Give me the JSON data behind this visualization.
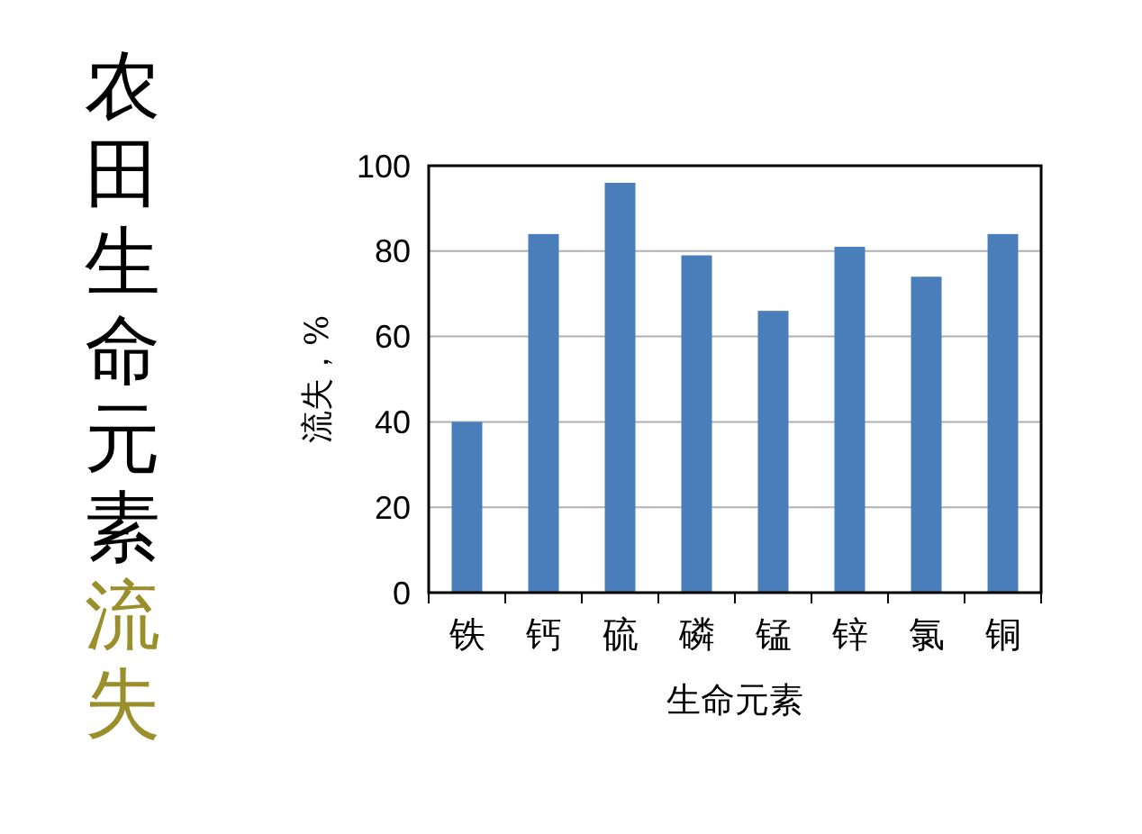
{
  "chart_data": {
    "type": "bar",
    "title": "农田生命元素流失",
    "xlabel": "生命元素",
    "ylabel": "流失，%",
    "categories": [
      "铁",
      "钙",
      "硫",
      "磷",
      "锰",
      "锌",
      "氯",
      "铜"
    ],
    "values": [
      40,
      84,
      96,
      79,
      66,
      81,
      74,
      84
    ],
    "color": "#4a7ebb",
    "ylim": [
      0,
      100
    ],
    "yticks": [
      0,
      20,
      40,
      60,
      80,
      100
    ],
    "grid": "y"
  }
}
